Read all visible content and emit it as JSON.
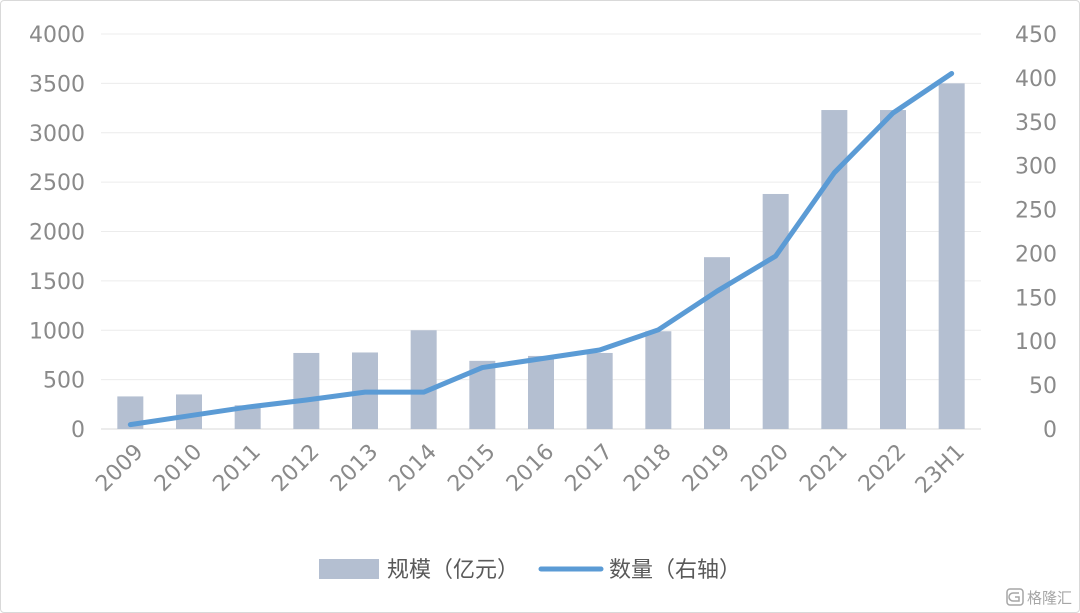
{
  "chart_data": {
    "type": "bar",
    "categories": [
      "2009",
      "2010",
      "2011",
      "2012",
      "2013",
      "2014",
      "2015",
      "2016",
      "2017",
      "2018",
      "2019",
      "2020",
      "2021",
      "2022",
      "23H1"
    ],
    "series": [
      {
        "name": "规模（亿元）",
        "chart_type": "bar",
        "axis": "left",
        "color": "#b4bfd1",
        "values": [
          330,
          350,
          240,
          770,
          775,
          1000,
          690,
          740,
          770,
          990,
          1740,
          2380,
          3230,
          3230,
          3500
        ]
      },
      {
        "name": "数量（右轴）",
        "chart_type": "line",
        "axis": "right",
        "color": "#5b9bd5",
        "values": [
          5,
          15,
          25,
          33,
          42,
          42,
          70,
          80,
          90,
          113,
          157,
          197,
          292,
          360,
          405
        ]
      }
    ],
    "yleft": {
      "min": 0,
      "max": 4000,
      "ticks": [
        "0",
        "500",
        "1000",
        "1500",
        "2000",
        "2500",
        "3000",
        "3500",
        "4000"
      ]
    },
    "yright": {
      "min": 0,
      "max": 450,
      "ticks": [
        "0",
        "50",
        "100",
        "150",
        "200",
        "250",
        "300",
        "350",
        "400",
        "450"
      ]
    },
    "grid": true,
    "legend_position": "bottom-center"
  },
  "watermark": {
    "icon": "gelonghui-logo-icon",
    "text": "格隆汇"
  }
}
